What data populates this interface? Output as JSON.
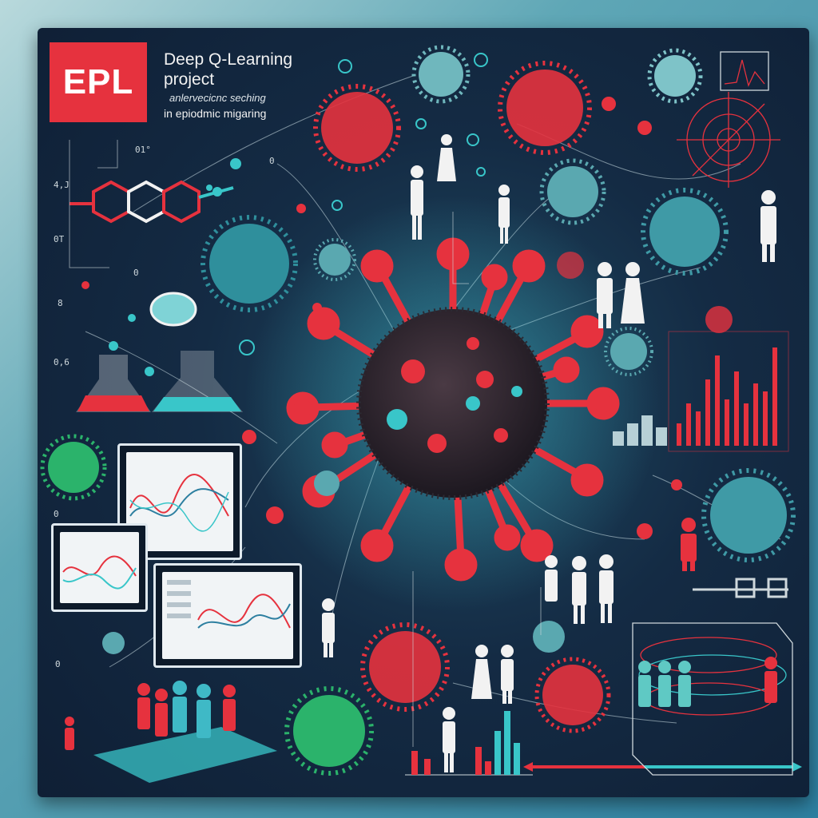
{
  "header": {
    "logo_text": "EPL",
    "title_line1": "Deep Q-Learning",
    "title_line2": "project",
    "subtitle_line1": "anlervecicnc seching",
    "subtitle_line2": "in epiodmic migaring"
  },
  "tick_labels": [
    "4,J",
    "0T",
    "8",
    "0,6",
    "0",
    "0",
    "01°",
    "0",
    "0"
  ],
  "colors": {
    "accent_red": "#e6323e",
    "teal": "#39c6c9",
    "dark_bg": "#142b44",
    "figure_white": "#f2f2f2",
    "virus_green": "#2bb36b"
  },
  "icons": [
    "virus-icon",
    "person-icon",
    "flask-icon",
    "molecule-icon",
    "monitor-icon",
    "bar-chart-icon",
    "radar-icon"
  ]
}
